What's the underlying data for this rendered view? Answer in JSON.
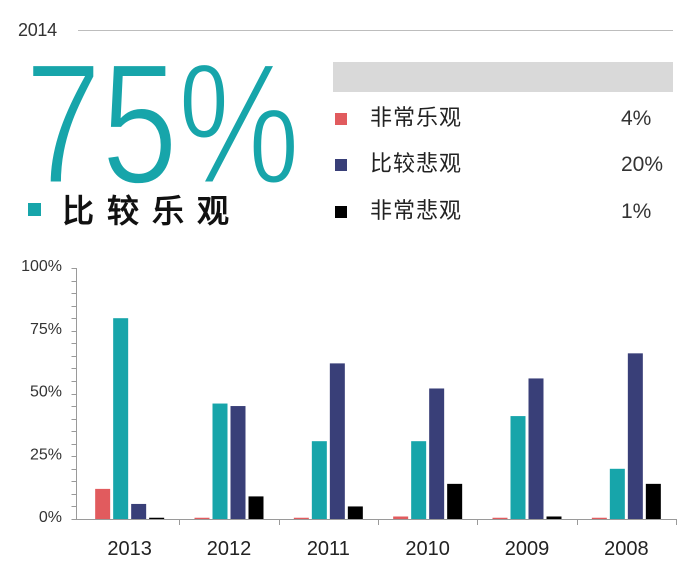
{
  "summary": {
    "year": "2014",
    "headline_value": "75%",
    "legend_values": [
      "4%",
      "20%",
      "1%"
    ]
  },
  "colors": {
    "axis": "#9a9a9a",
    "panel_bar": "#d9d9d9",
    "divider": "#bdbdbd"
  },
  "chart_data": {
    "type": "bar",
    "categories": [
      "2013",
      "2012",
      "2011",
      "2010",
      "2009",
      "2008"
    ],
    "series": [
      {
        "name": "非常乐观",
        "color": "#e15b5e",
        "values": [
          12,
          0.5,
          0.5,
          1,
          0.5,
          0.5
        ]
      },
      {
        "name": "比较乐观",
        "color": "#17a5aa",
        "values": [
          80,
          46,
          31,
          31,
          41,
          20
        ]
      },
      {
        "name": "比较悲观",
        "color": "#393f78",
        "values": [
          6,
          45,
          62,
          52,
          56,
          66
        ]
      },
      {
        "name": "非常悲观",
        "color": "#000000",
        "values": [
          0.5,
          9,
          5,
          14,
          1,
          14
        ]
      }
    ],
    "ylim": [
      0,
      100
    ],
    "yticks": [
      "0%",
      "25%",
      "50%",
      "75%",
      "100%"
    ],
    "grid": false,
    "legend": "top-right"
  }
}
